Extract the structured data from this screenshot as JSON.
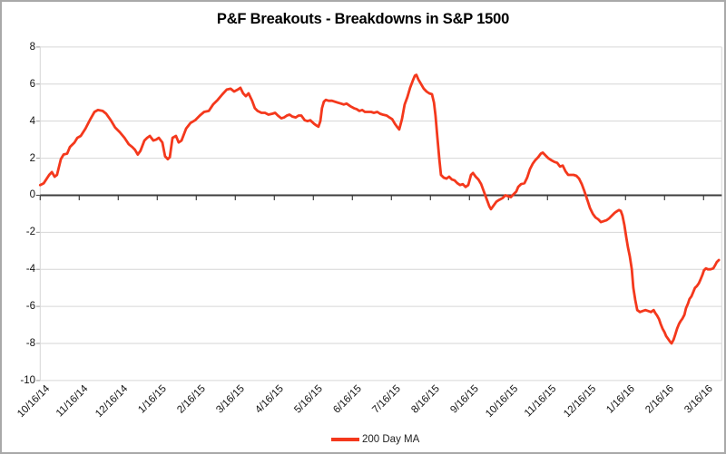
{
  "title": "P&F Breakouts - Breakdowns in S&P 1500",
  "legend": {
    "series_label": "200 Day MA"
  },
  "colors": {
    "line": "#f4381c",
    "gridline": "#d6d6d6",
    "zero_axis": "#3d3d3d",
    "tick": "#9a9a9a",
    "text": "#111111",
    "border": "#a9a9a9"
  },
  "y_axis": {
    "labels": [
      "8",
      "6",
      "4",
      "2",
      "0",
      "-2",
      "-4",
      "-6",
      "-8",
      "-10"
    ],
    "max": 8,
    "min": -10,
    "step": 2
  },
  "x_axis": {
    "labels": [
      "10/16/14",
      "11/16/14",
      "12/16/14",
      "1/16/15",
      "2/16/15",
      "3/16/15",
      "4/16/15",
      "5/16/15",
      "6/16/15",
      "7/16/15",
      "8/16/15",
      "9/16/15",
      "10/16/15",
      "11/16/15",
      "12/16/15",
      "1/16/16",
      "2/16/16",
      "3/16/16"
    ]
  },
  "chart_data": {
    "type": "line",
    "title": "P&F Breakouts - Breakdowns in S&P 1500",
    "xlabel": "date (monthly ticks, 10/16/14 - 3/16/16)",
    "ylabel": "",
    "x_unit": "months since 10/16/14",
    "xlim": [
      0,
      17.47
    ],
    "ylim": [
      -10,
      8
    ],
    "grid": "horizontal only, zero axis emphasized with down ticks",
    "legend_position": "bottom center",
    "series": [
      {
        "name": "200 Day MA",
        "color": "#f4381c",
        "points": [
          [
            0,
            0.55
          ],
          [
            0.09,
            0.65
          ],
          [
            0.23,
            1.1
          ],
          [
            0.3,
            1.25
          ],
          [
            0.37,
            1.0
          ],
          [
            0.43,
            1.1
          ],
          [
            0.53,
            1.95
          ],
          [
            0.6,
            2.2
          ],
          [
            0.69,
            2.25
          ],
          [
            0.76,
            2.6
          ],
          [
            0.88,
            2.85
          ],
          [
            0.95,
            3.1
          ],
          [
            1.04,
            3.2
          ],
          [
            1.16,
            3.6
          ],
          [
            1.27,
            4.05
          ],
          [
            1.39,
            4.5
          ],
          [
            1.48,
            4.6
          ],
          [
            1.6,
            4.55
          ],
          [
            1.69,
            4.4
          ],
          [
            1.81,
            4.05
          ],
          [
            1.92,
            3.65
          ],
          [
            2.04,
            3.4
          ],
          [
            2.16,
            3.1
          ],
          [
            2.27,
            2.75
          ],
          [
            2.36,
            2.6
          ],
          [
            2.43,
            2.45
          ],
          [
            2.5,
            2.2
          ],
          [
            2.57,
            2.4
          ],
          [
            2.67,
            2.95
          ],
          [
            2.74,
            3.1
          ],
          [
            2.81,
            3.2
          ],
          [
            2.9,
            2.95
          ],
          [
            2.97,
            3.0
          ],
          [
            3.04,
            3.1
          ],
          [
            3.13,
            2.85
          ],
          [
            3.2,
            2.1
          ],
          [
            3.27,
            1.95
          ],
          [
            3.32,
            2.05
          ],
          [
            3.39,
            3.1
          ],
          [
            3.48,
            3.2
          ],
          [
            3.55,
            2.85
          ],
          [
            3.62,
            2.95
          ],
          [
            3.74,
            3.6
          ],
          [
            3.85,
            3.9
          ],
          [
            3.97,
            4.05
          ],
          [
            4.09,
            4.3
          ],
          [
            4.2,
            4.5
          ],
          [
            4.32,
            4.55
          ],
          [
            4.43,
            4.9
          ],
          [
            4.55,
            5.15
          ],
          [
            4.67,
            5.45
          ],
          [
            4.78,
            5.7
          ],
          [
            4.88,
            5.75
          ],
          [
            4.97,
            5.6
          ],
          [
            5.06,
            5.7
          ],
          [
            5.13,
            5.8
          ],
          [
            5.2,
            5.5
          ],
          [
            5.27,
            5.35
          ],
          [
            5.34,
            5.5
          ],
          [
            5.43,
            5.1
          ],
          [
            5.5,
            4.7
          ],
          [
            5.57,
            4.55
          ],
          [
            5.67,
            4.45
          ],
          [
            5.76,
            4.45
          ],
          [
            5.85,
            4.35
          ],
          [
            5.95,
            4.4
          ],
          [
            6.02,
            4.45
          ],
          [
            6.09,
            4.3
          ],
          [
            6.18,
            4.15
          ],
          [
            6.25,
            4.2
          ],
          [
            6.32,
            4.3
          ],
          [
            6.39,
            4.35
          ],
          [
            6.46,
            4.25
          ],
          [
            6.55,
            4.2
          ],
          [
            6.62,
            4.3
          ],
          [
            6.69,
            4.3
          ],
          [
            6.78,
            4.05
          ],
          [
            6.85,
            4.0
          ],
          [
            6.92,
            4.05
          ],
          [
            7.02,
            3.85
          ],
          [
            7.09,
            3.75
          ],
          [
            7.13,
            3.7
          ],
          [
            7.18,
            4.0
          ],
          [
            7.22,
            4.7
          ],
          [
            7.27,
            5.05
          ],
          [
            7.32,
            5.15
          ],
          [
            7.39,
            5.1
          ],
          [
            7.48,
            5.1
          ],
          [
            7.55,
            5.05
          ],
          [
            7.62,
            5.0
          ],
          [
            7.71,
            4.95
          ],
          [
            7.78,
            4.9
          ],
          [
            7.85,
            4.95
          ],
          [
            7.95,
            4.8
          ],
          [
            8.04,
            4.7
          ],
          [
            8.11,
            4.65
          ],
          [
            8.18,
            4.55
          ],
          [
            8.25,
            4.6
          ],
          [
            8.32,
            4.5
          ],
          [
            8.41,
            4.5
          ],
          [
            8.48,
            4.5
          ],
          [
            8.55,
            4.45
          ],
          [
            8.64,
            4.5
          ],
          [
            8.71,
            4.4
          ],
          [
            8.78,
            4.35
          ],
          [
            8.88,
            4.3
          ],
          [
            8.95,
            4.2
          ],
          [
            9.02,
            4.1
          ],
          [
            9.09,
            3.85
          ],
          [
            9.16,
            3.65
          ],
          [
            9.2,
            3.55
          ],
          [
            9.27,
            4.1
          ],
          [
            9.34,
            4.9
          ],
          [
            9.41,
            5.3
          ],
          [
            9.48,
            5.8
          ],
          [
            9.55,
            6.2
          ],
          [
            9.6,
            6.45
          ],
          [
            9.64,
            6.5
          ],
          [
            9.69,
            6.25
          ],
          [
            9.76,
            6.0
          ],
          [
            9.83,
            5.75
          ],
          [
            9.9,
            5.6
          ],
          [
            9.97,
            5.5
          ],
          [
            10.04,
            5.45
          ],
          [
            10.09,
            5.0
          ],
          [
            10.13,
            4.3
          ],
          [
            10.18,
            3.1
          ],
          [
            10.23,
            1.9
          ],
          [
            10.27,
            1.1
          ],
          [
            10.34,
            0.95
          ],
          [
            10.41,
            0.9
          ],
          [
            10.48,
            1.0
          ],
          [
            10.55,
            0.85
          ],
          [
            10.62,
            0.8
          ],
          [
            10.69,
            0.65
          ],
          [
            10.76,
            0.55
          ],
          [
            10.83,
            0.6
          ],
          [
            10.9,
            0.45
          ],
          [
            10.97,
            0.55
          ],
          [
            11.04,
            1.1
          ],
          [
            11.09,
            1.2
          ],
          [
            11.16,
            1.0
          ],
          [
            11.23,
            0.85
          ],
          [
            11.3,
            0.6
          ],
          [
            11.37,
            0.2
          ],
          [
            11.44,
            -0.2
          ],
          [
            11.51,
            -0.6
          ],
          [
            11.55,
            -0.75
          ],
          [
            11.62,
            -0.55
          ],
          [
            11.69,
            -0.35
          ],
          [
            11.76,
            -0.25
          ],
          [
            11.85,
            -0.15
          ],
          [
            11.92,
            0.0
          ],
          [
            11.99,
            -0.05
          ],
          [
            12.06,
            -0.1
          ],
          [
            12.13,
            0.05
          ],
          [
            12.2,
            0.2
          ],
          [
            12.25,
            0.45
          ],
          [
            12.32,
            0.6
          ],
          [
            12.41,
            0.65
          ],
          [
            12.48,
            0.95
          ],
          [
            12.55,
            1.4
          ],
          [
            12.62,
            1.7
          ],
          [
            12.69,
            1.9
          ],
          [
            12.76,
            2.05
          ],
          [
            12.83,
            2.25
          ],
          [
            12.88,
            2.3
          ],
          [
            12.95,
            2.15
          ],
          [
            13.02,
            2.0
          ],
          [
            13.09,
            1.9
          ],
          [
            13.18,
            1.8
          ],
          [
            13.25,
            1.75
          ],
          [
            13.32,
            1.55
          ],
          [
            13.39,
            1.6
          ],
          [
            13.46,
            1.3
          ],
          [
            13.53,
            1.1
          ],
          [
            13.6,
            1.1
          ],
          [
            13.67,
            1.1
          ],
          [
            13.74,
            1.05
          ],
          [
            13.81,
            0.9
          ],
          [
            13.88,
            0.6
          ],
          [
            13.95,
            0.2
          ],
          [
            14.02,
            -0.25
          ],
          [
            14.09,
            -0.7
          ],
          [
            14.16,
            -1.0
          ],
          [
            14.23,
            -1.2
          ],
          [
            14.3,
            -1.3
          ],
          [
            14.37,
            -1.45
          ],
          [
            14.44,
            -1.4
          ],
          [
            14.51,
            -1.35
          ],
          [
            14.58,
            -1.25
          ],
          [
            14.65,
            -1.1
          ],
          [
            14.72,
            -0.95
          ],
          [
            14.79,
            -0.85
          ],
          [
            14.83,
            -0.8
          ],
          [
            14.88,
            -0.85
          ],
          [
            14.92,
            -1.1
          ],
          [
            14.97,
            -1.6
          ],
          [
            15.02,
            -2.3
          ],
          [
            15.06,
            -2.8
          ],
          [
            15.11,
            -3.3
          ],
          [
            15.16,
            -4.0
          ],
          [
            15.2,
            -5.0
          ],
          [
            15.25,
            -5.65
          ],
          [
            15.3,
            -6.2
          ],
          [
            15.37,
            -6.3
          ],
          [
            15.44,
            -6.25
          ],
          [
            15.51,
            -6.2
          ],
          [
            15.58,
            -6.25
          ],
          [
            15.65,
            -6.3
          ],
          [
            15.72,
            -6.2
          ],
          [
            15.76,
            -6.35
          ],
          [
            15.81,
            -6.5
          ],
          [
            15.86,
            -6.7
          ],
          [
            15.9,
            -6.95
          ],
          [
            15.95,
            -7.2
          ],
          [
            16.0,
            -7.4
          ],
          [
            16.04,
            -7.6
          ],
          [
            16.09,
            -7.75
          ],
          [
            16.14,
            -7.9
          ],
          [
            16.18,
            -8.0
          ],
          [
            16.23,
            -7.8
          ],
          [
            16.27,
            -7.55
          ],
          [
            16.32,
            -7.2
          ],
          [
            16.37,
            -6.95
          ],
          [
            16.41,
            -6.8
          ],
          [
            16.46,
            -6.65
          ],
          [
            16.51,
            -6.45
          ],
          [
            16.55,
            -6.1
          ],
          [
            16.6,
            -5.85
          ],
          [
            16.64,
            -5.6
          ],
          [
            16.69,
            -5.45
          ],
          [
            16.74,
            -5.2
          ],
          [
            16.78,
            -5.0
          ],
          [
            16.83,
            -4.9
          ],
          [
            16.88,
            -4.75
          ],
          [
            16.92,
            -4.55
          ],
          [
            16.97,
            -4.3
          ],
          [
            17.01,
            -4.05
          ],
          [
            17.06,
            -3.95
          ],
          [
            17.11,
            -4.0
          ],
          [
            17.18,
            -4.0
          ],
          [
            17.25,
            -3.95
          ],
          [
            17.29,
            -3.8
          ],
          [
            17.34,
            -3.6
          ],
          [
            17.39,
            -3.5
          ]
        ]
      }
    ]
  }
}
